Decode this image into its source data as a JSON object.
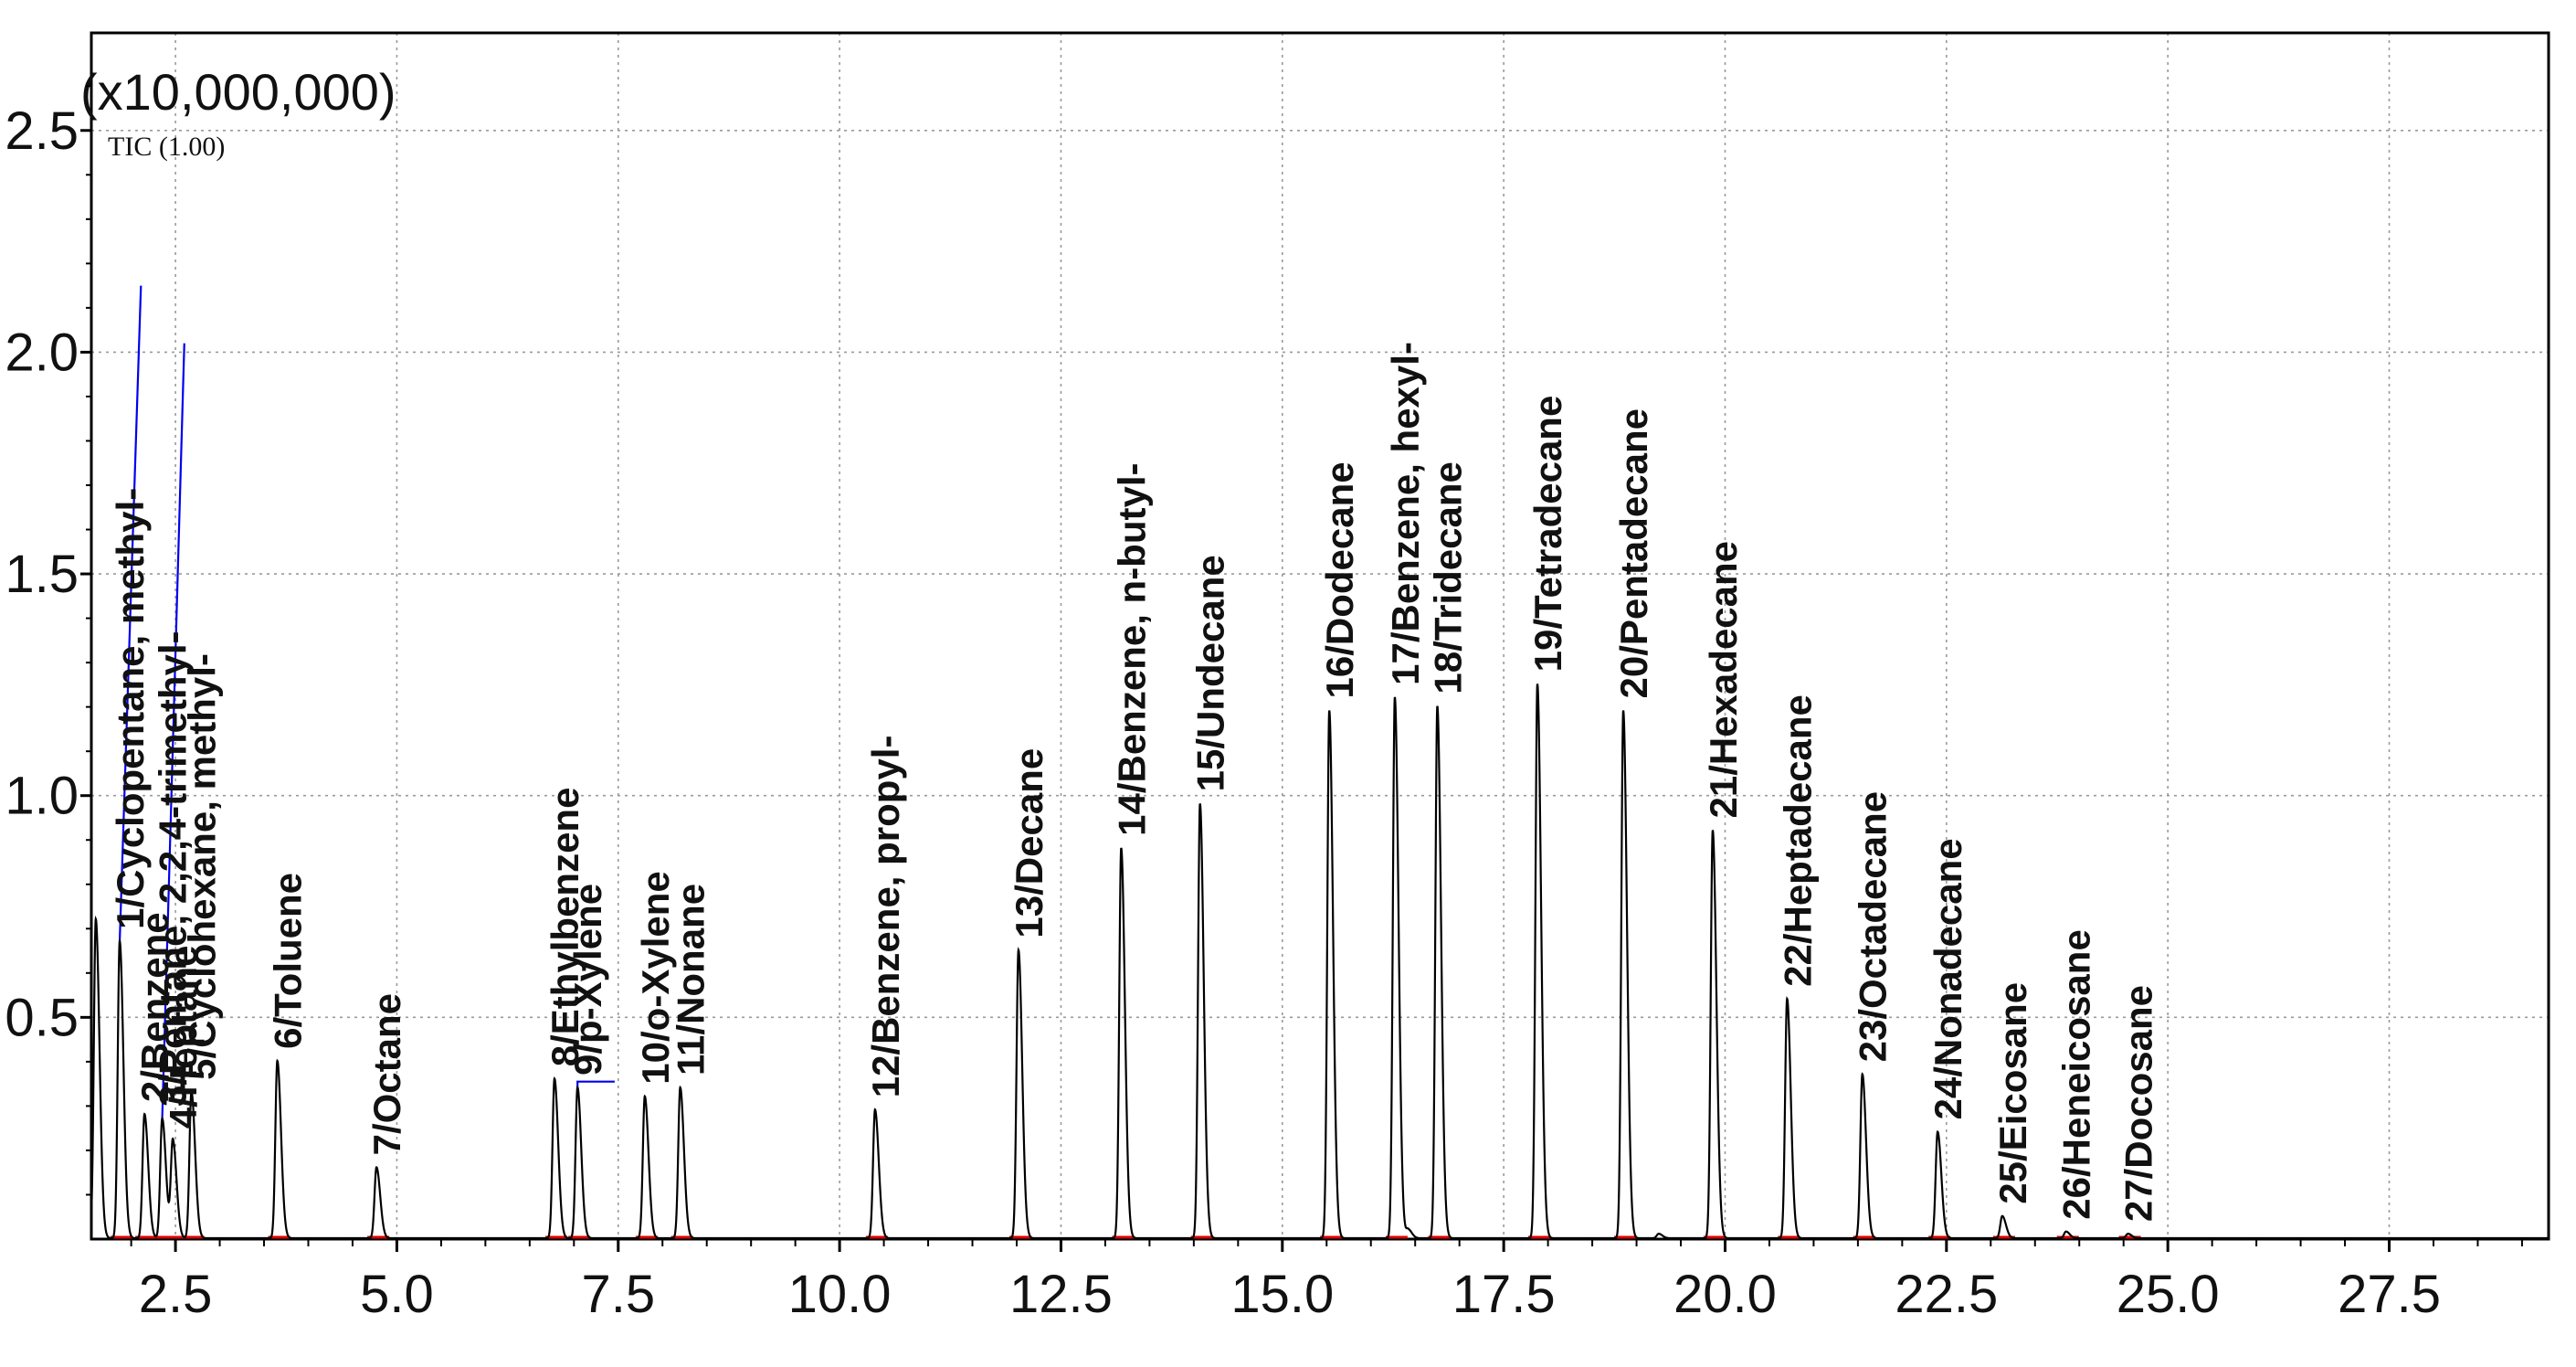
{
  "chart_data": {
    "type": "line",
    "title": "",
    "xlabel": "",
    "ylabel": "",
    "y_multiplier_label": "(x10,000,000)",
    "trace_label": "TIC (1.00)",
    "xlim": [
      1.55,
      29.3
    ],
    "ylim": [
      0,
      2.72
    ],
    "x_ticks": [
      2.5,
      5.0,
      7.5,
      10.0,
      12.5,
      15.0,
      17.5,
      20.0,
      22.5,
      25.0,
      27.5
    ],
    "x_tick_labels": [
      "2.5",
      "5.0",
      "7.5",
      "10.0",
      "12.5",
      "15.0",
      "17.5",
      "20.0",
      "22.5",
      "25.0",
      "27.5"
    ],
    "y_ticks": [
      0.5,
      1.0,
      1.5,
      2.0,
      2.5
    ],
    "y_tick_labels": [
      "0.5",
      "1.0",
      "1.5",
      "2.0",
      "2.5"
    ],
    "grid": true,
    "colors": {
      "trace": "#000000",
      "integration": "#0000ee",
      "baseline": "#dd0000",
      "grid": "#9a9a9a"
    },
    "peaks": [
      {
        "id": 1,
        "label": "1/Cyclopentane, methyl-",
        "rt": 1.87,
        "height": 0.67
      },
      {
        "id": 2,
        "label": "2/Benzene",
        "rt": 2.15,
        "height": 0.28
      },
      {
        "id": 3,
        "label": "3/Pentane, 2,2,4-trimethyl-",
        "rt": 2.35,
        "height": 0.27
      },
      {
        "id": 4,
        "label": "4/Heptane",
        "rt": 2.47,
        "height": 0.22
      },
      {
        "id": 5,
        "label": "5/Cyclohexane, methyl-",
        "rt": 2.68,
        "height": 0.33
      },
      {
        "id": 6,
        "label": "6/Toluene",
        "rt": 3.65,
        "height": 0.4
      },
      {
        "id": 7,
        "label": "7/Octane",
        "rt": 4.77,
        "height": 0.16
      },
      {
        "id": 8,
        "label": "8/Ethylbenzene",
        "rt": 6.78,
        "height": 0.36
      },
      {
        "id": 9,
        "label": "9/p-Xylene",
        "rt": 7.04,
        "height": 0.34
      },
      {
        "id": 10,
        "label": "10/o-Xylene",
        "rt": 7.8,
        "height": 0.32
      },
      {
        "id": 11,
        "label": "11/Nonane",
        "rt": 8.2,
        "height": 0.34
      },
      {
        "id": 12,
        "label": "12/Benzene, propyl-",
        "rt": 10.4,
        "height": 0.29
      },
      {
        "id": 13,
        "label": "13/Decane",
        "rt": 12.02,
        "height": 0.65
      },
      {
        "id": 14,
        "label": "14/Benzene, n-butyl-",
        "rt": 13.18,
        "height": 0.88
      },
      {
        "id": 15,
        "label": "15/Undecane",
        "rt": 14.07,
        "height": 0.98
      },
      {
        "id": 16,
        "label": "16/Dodecane",
        "rt": 15.53,
        "height": 1.19
      },
      {
        "id": 17,
        "label": "17/Benzene, hexyl-",
        "rt": 16.27,
        "height": 1.22
      },
      {
        "id": 18,
        "label": "18/Tridecane",
        "rt": 16.75,
        "height": 1.2
      },
      {
        "id": 19,
        "label": "19/Tetradecane",
        "rt": 17.88,
        "height": 1.25
      },
      {
        "id": 20,
        "label": "20/Pentadecane",
        "rt": 18.85,
        "height": 1.19
      },
      {
        "id": 21,
        "label": "21/Hexadecane",
        "rt": 19.86,
        "height": 0.92
      },
      {
        "id": 22,
        "label": "22/Heptadecane",
        "rt": 20.7,
        "height": 0.54
      },
      {
        "id": 23,
        "label": "23/Octadecane",
        "rt": 21.55,
        "height": 0.37
      },
      {
        "id": 24,
        "label": "24/Nonadecane",
        "rt": 22.4,
        "height": 0.24
      },
      {
        "id": 25,
        "label": "25/Eicosane",
        "rt": 23.13,
        "height": 0.05
      },
      {
        "id": 26,
        "label": "26/Heneicosane",
        "rt": 23.85,
        "height": 0.015
      },
      {
        "id": 27,
        "label": "27/Docosane",
        "rt": 24.55,
        "height": 0.01
      }
    ],
    "extra_peaks": [
      {
        "rt": 1.6,
        "height": 0.72
      },
      {
        "rt": 16.42,
        "height": 0.02
      },
      {
        "rt": 19.25,
        "height": 0.01
      }
    ]
  }
}
